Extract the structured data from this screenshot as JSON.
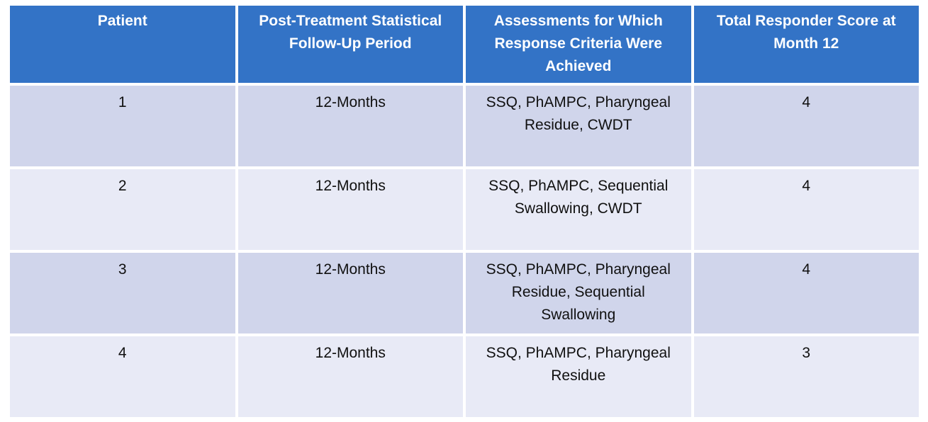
{
  "table": {
    "headers": [
      "Patient",
      "Post-Treatment Statistical Follow-Up Period",
      "Assessments for Which Response Criteria Were Achieved",
      "Total Responder Score at Month 12"
    ],
    "rows": [
      [
        "1",
        "12-Months",
        "SSQ, PhAMPC, Pharyngeal Residue, CWDT",
        "4"
      ],
      [
        "2",
        "12-Months",
        "SSQ, PhAMPC, Sequential Swallowing, CWDT",
        "4"
      ],
      [
        "3",
        "12-Months",
        "SSQ, PhAMPC, Pharyngeal Residue, Sequential Swallowing",
        "4"
      ],
      [
        "4",
        "12-Months",
        "SSQ, PhAMPC, Pharyngeal Residue",
        "3"
      ]
    ]
  },
  "colors": {
    "header_bg": "#3373C6",
    "header_text": "#FFFFFF",
    "row_band_dark": "#D0D5EB",
    "row_band_light": "#E8EAF6",
    "body_text": "#101010",
    "gridline": "#FFFFFF"
  }
}
